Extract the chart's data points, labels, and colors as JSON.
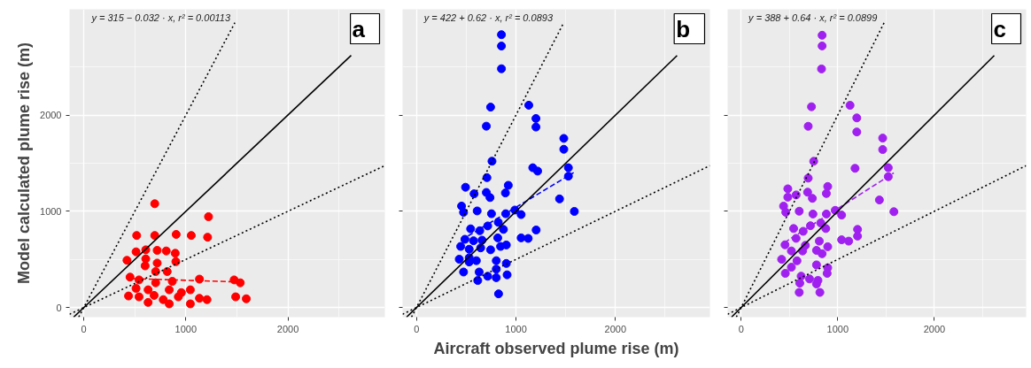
{
  "chart_data": [
    {
      "type": "scatter",
      "xlabel": null,
      "ylabel": "Model calculated plume rise (m)",
      "xlim": [
        -140,
        2950
      ],
      "ylim": [
        -100,
        3100
      ],
      "xticks": [
        0,
        1000,
        2000
      ],
      "yticks": [
        0,
        1000,
        2000
      ],
      "grid": true,
      "annotations": [
        "y = 315 − 0.032 · x,  r² = 0.00113",
        "a"
      ],
      "series": [
        {
          "marker": "circle",
          "color": "#ff0000",
          "x": [
            695,
            1222,
            518,
            695,
            905,
            1053,
            1213,
            423,
            512,
            607,
            719,
            808,
            896,
            607,
            719,
            902,
            601,
            704,
            817,
            541,
            704,
            867,
            1133,
            1473,
            1533,
            438,
            541,
            630,
            689,
            778,
            837,
            926,
            1044,
            1044,
            1133,
            1207,
            1488,
            1592,
            512,
            630,
            837,
            453,
            956
          ],
          "values": [
            1079,
            944,
            749,
            749,
            760,
            749,
            731,
            491,
            579,
            600,
            594,
            588,
            564,
            506,
            462,
            477,
            433,
            374,
            374,
            287,
            257,
            272,
            295,
            287,
            257,
            120,
            111,
            53,
            126,
            82,
            38,
            111,
            184,
            38,
            96,
            82,
            111,
            91,
            199,
            184,
            184,
            316,
            155
          ]
        },
        {
          "type": "line",
          "line_style": "dashed",
          "color": "#ff0000",
          "x": [
            480,
            1550
          ],
          "values": [
            300,
            265
          ]
        },
        {
          "type": "line",
          "line_style": "solid",
          "color": "#000000",
          "x": [
            -100,
            2620
          ],
          "values": [
            -100,
            2620
          ]
        },
        {
          "type": "line",
          "line_style": "dotted",
          "color": "#000000",
          "x": [
            -50,
            1480
          ],
          "values": [
            -100,
            2960
          ]
        },
        {
          "type": "line",
          "line_style": "dotted",
          "color": "#000000",
          "x": [
            -140,
            2950
          ],
          "values": [
            -70,
            1475
          ]
        }
      ]
    },
    {
      "type": "scatter",
      "xlabel": "Aircraft observed plume rise (m)",
      "xlim": [
        -140,
        2950
      ],
      "ylim": [
        -100,
        3100
      ],
      "xticks": [
        0,
        1000,
        2000
      ],
      "yticks": [
        0,
        1000,
        2000
      ],
      "grid": true,
      "tick_labels": "x",
      "annotations": [
        "y = 422 + 0.62 · x,  r² = 0.0893",
        "b"
      ],
      "series": [
        {
          "marker": "circle",
          "color": "#0000ff",
          "x": [
            854,
            854,
            854,
            745,
            702,
            1129,
            1201,
            1201,
            1481,
            1481,
            759,
            708,
            1169,
            1218,
            1527,
            1527,
            493,
            579,
            702,
            739,
            923,
            894,
            1438,
            453,
            473,
            610,
            754,
            897,
            989,
            1052,
            1587,
            544,
            636,
            716,
            822,
            874,
            1203,
            1052,
            1123,
            487,
            573,
            659,
            817,
            903,
            444,
            530,
            645,
            745,
            845,
            430,
            530,
            602,
            802,
            903,
            473,
            630,
            802,
            911,
            616,
            716,
            802,
            825,
            530
          ],
          "values": [
            2836,
            2718,
            2482,
            2083,
            1885,
            2103,
            1965,
            1876,
            1758,
            1645,
            1521,
            1350,
            1453,
            1418,
            1453,
            1365,
            1250,
            1182,
            1196,
            1143,
            1270,
            1191,
            1129,
            1055,
            990,
            1004,
            975,
            975,
            1013,
            966,
            999,
            818,
            798,
            848,
            886,
            812,
            806,
            724,
            718,
            709,
            694,
            700,
            724,
            650,
            635,
            606,
            620,
            600,
            635,
            502,
            517,
            487,
            487,
            458,
            369,
            369,
            399,
            340,
            281,
            325,
            310,
            142,
            473
          ]
        },
        {
          "type": "line",
          "line_style": "dashed",
          "color": "#0000ff",
          "x": [
            450,
            1580
          ],
          "values": [
            701,
            1402
          ]
        },
        {
          "type": "line",
          "line_style": "solid",
          "color": "#000000",
          "x": [
            -100,
            2620
          ],
          "values": [
            -100,
            2620
          ]
        },
        {
          "type": "line",
          "line_style": "dotted",
          "color": "#000000",
          "x": [
            -50,
            1480
          ],
          "values": [
            -100,
            2960
          ]
        },
        {
          "type": "line",
          "line_style": "dotted",
          "color": "#000000",
          "x": [
            -140,
            2950
          ],
          "values": [
            -70,
            1475
          ]
        }
      ]
    },
    {
      "type": "scatter",
      "xlabel": null,
      "xlim": [
        -140,
        2950
      ],
      "ylim": [
        -100,
        3100
      ],
      "xticks": [
        0,
        1000,
        2000
      ],
      "yticks": [
        0,
        1000,
        2000
      ],
      "grid": true,
      "tick_labels": "x",
      "annotations": [
        "y = 388 + 0.64 · x,  r² = 0.0899",
        "c"
      ],
      "series": [
        {
          "marker": "circle",
          "color": "#a020f0",
          "x": [
            838,
            838,
            832,
            728,
            694,
            1127,
            1197,
            1197,
            1465,
            1465,
            751,
            694,
            1179,
            1523,
            1523,
            483,
            483,
            569,
            688,
            737,
            896,
            882,
            1431,
            439,
            462,
            601,
            743,
            882,
            974,
            1040,
            1581,
            543,
            642,
            717,
            824,
            876,
            1205,
            1205,
            1040,
            1113,
            454,
            569,
            665,
            809,
            896,
            520,
            636,
            780,
            838,
            419,
            578,
            780,
            896,
            457,
            520,
            621,
            708,
            795,
            890,
            601,
            815,
            780,
            607
          ],
          "values": [
            2830,
            2719,
            2480,
            2087,
            1884,
            2102,
            1971,
            1825,
            1761,
            1642,
            1520,
            1345,
            1447,
            1453,
            1360,
            1234,
            1147,
            1170,
            1199,
            1135,
            1258,
            1185,
            1118,
            1054,
            990,
            1001,
            972,
            972,
            1010,
            961,
            996,
            821,
            792,
            850,
            879,
            821,
            812,
            742,
            704,
            690,
            652,
            719,
            646,
            690,
            632,
            588,
            588,
            594,
            559,
            501,
            486,
            443,
            413,
            355,
            419,
            326,
            297,
            282,
            355,
            157,
            157,
            245,
            253
          ]
        },
        {
          "type": "line",
          "line_style": "dashed",
          "color": "#a020f0",
          "x": [
            450,
            1580
          ],
          "values": [
            676,
            1399
          ]
        },
        {
          "type": "line",
          "line_style": "solid",
          "color": "#000000",
          "x": [
            -100,
            2620
          ],
          "values": [
            -100,
            2620
          ]
        },
        {
          "type": "line",
          "line_style": "dotted",
          "color": "#000000",
          "x": [
            -50,
            1480
          ],
          "values": [
            -100,
            2960
          ]
        },
        {
          "type": "line",
          "line_style": "dotted",
          "color": "#000000",
          "x": [
            -140,
            2950
          ],
          "values": [
            -70,
            1475
          ]
        }
      ]
    }
  ]
}
